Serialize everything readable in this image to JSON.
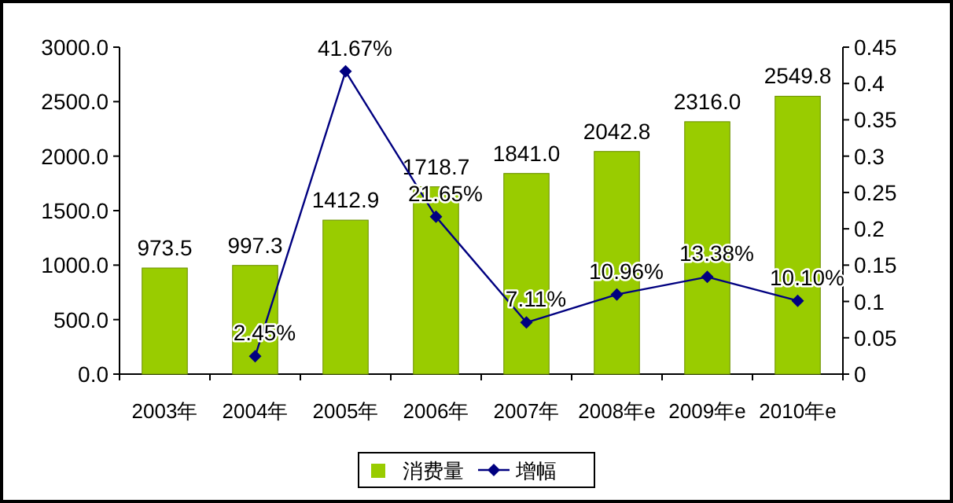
{
  "chart_data": {
    "type": "bar",
    "categories": [
      "2003年",
      "2004年",
      "2005年",
      "2006年",
      "2007年",
      "2008年e",
      "2009年e",
      "2010年e"
    ],
    "series": [
      {
        "name": "消费量",
        "color": "#99cc00",
        "values": [
          973.5,
          997.3,
          1412.9,
          1718.7,
          1841.0,
          2042.8,
          2316.0,
          2549.8
        ],
        "value_labels": [
          "973.5",
          "997.3",
          "1412.9",
          "1718.7",
          "1841.0",
          "2042.8",
          "2316.0",
          "2549.8"
        ]
      },
      {
        "name": "增幅",
        "type": "line",
        "axis": "y2",
        "color": "#000080",
        "marker": "diamond",
        "values": [
          null,
          0.0245,
          0.4167,
          0.2165,
          0.0711,
          0.1096,
          0.1338,
          0.101
        ],
        "value_labels": [
          null,
          "2.45%",
          "41.67%",
          "21.65%",
          "7.11%",
          "10.96%",
          "13.38%",
          "10.10%"
        ]
      }
    ],
    "ylim": [
      0,
      3000
    ],
    "yticks": [
      {
        "value": 0,
        "label": "0.0"
      },
      {
        "value": 500,
        "label": "500.0"
      },
      {
        "value": 1000,
        "label": "1000.0"
      },
      {
        "value": 1500,
        "label": "1500.0"
      },
      {
        "value": 2000,
        "label": "2000.0"
      },
      {
        "value": 2500,
        "label": "2500.0"
      },
      {
        "value": 3000,
        "label": "3000.0"
      }
    ],
    "y2lim": [
      0,
      0.45
    ],
    "y2ticks": [
      0,
      0.05,
      0.1,
      0.15,
      0.2,
      0.25,
      0.3,
      0.35,
      0.4,
      0.45
    ],
    "legend": "bottom",
    "grid": false
  }
}
